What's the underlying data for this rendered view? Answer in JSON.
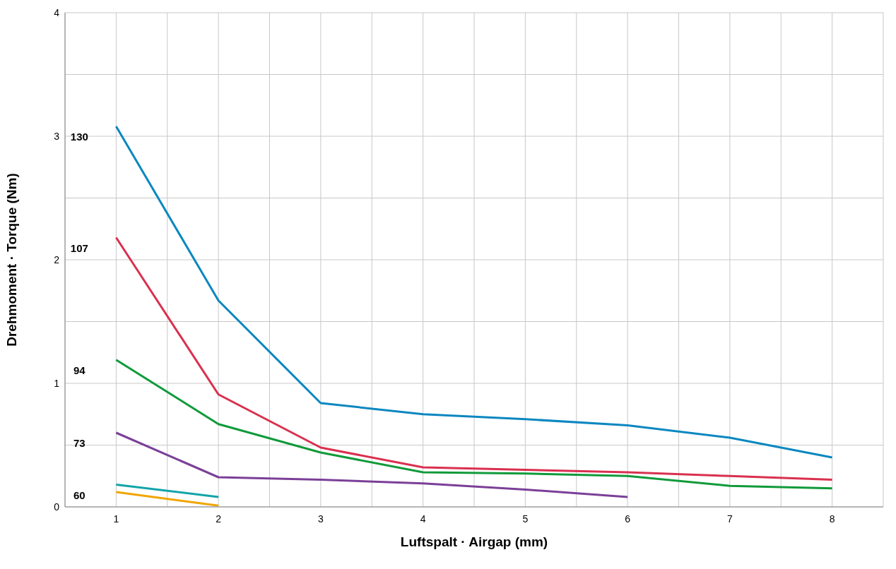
{
  "chart_data": {
    "type": "line",
    "xlabel": "Luftspalt · Airgap (mm)",
    "ylabel": "Drehmoment · Torque (Nm)",
    "xlim": [
      0.5,
      8.5
    ],
    "xticks": [
      {
        "value": 0.5,
        "label": null
      },
      1,
      {
        "value": 1.5,
        "label": null
      },
      2,
      {
        "value": 2.5,
        "label": null
      },
      3,
      {
        "value": 3.5,
        "label": null
      },
      4,
      {
        "value": 4.5,
        "label": null
      },
      5,
      {
        "value": 5.5,
        "label": null
      },
      6,
      {
        "value": 6.5,
        "label": null
      },
      7,
      {
        "value": 7.5,
        "label": null
      },
      8,
      {
        "value": 8.5,
        "label": null
      }
    ],
    "ylim": [
      0,
      4
    ],
    "yticks": [
      0,
      {
        "value": 0.5,
        "label": null
      },
      1,
      {
        "value": 1.5,
        "label": null
      },
      2,
      {
        "value": 2.5,
        "label": null
      },
      3,
      {
        "value": 3.5,
        "label": null
      },
      4
    ],
    "grid": true,
    "marker": "none",
    "line_style": "solid",
    "series": [
      {
        "name": "130",
        "color": "#0a87c0",
        "x": [
          1,
          2,
          3,
          4,
          5,
          6,
          7,
          8
        ],
        "values": [
          3.08,
          1.67,
          0.84,
          0.75,
          0.71,
          0.66,
          0.56,
          0.4
        ]
      },
      {
        "name": "107",
        "color": "#d9304f",
        "x": [
          1,
          2,
          3,
          4,
          5,
          6,
          7,
          8
        ],
        "values": [
          2.18,
          0.91,
          0.48,
          0.32,
          0.3,
          0.28,
          0.25,
          0.22
        ]
      },
      {
        "name": "94",
        "color": "#109a3a",
        "x": [
          1,
          2,
          3,
          4,
          5,
          6,
          7,
          8
        ],
        "values": [
          1.19,
          0.67,
          0.44,
          0.28,
          0.27,
          0.25,
          0.17,
          0.15
        ]
      },
      {
        "name": "73",
        "color": "#7b3f98",
        "x": [
          1,
          2,
          3,
          4,
          5,
          6
        ],
        "values": [
          0.6,
          0.24,
          0.22,
          0.19,
          0.14,
          0.08
        ]
      },
      {
        "name": "60",
        "color": "#13a3a8",
        "x": [
          1,
          2
        ],
        "values": [
          0.18,
          0.08
        ]
      },
      {
        "color": "#f0a500",
        "x": [
          1,
          2
        ],
        "values": [
          0.12,
          0.01
        ]
      }
    ]
  }
}
